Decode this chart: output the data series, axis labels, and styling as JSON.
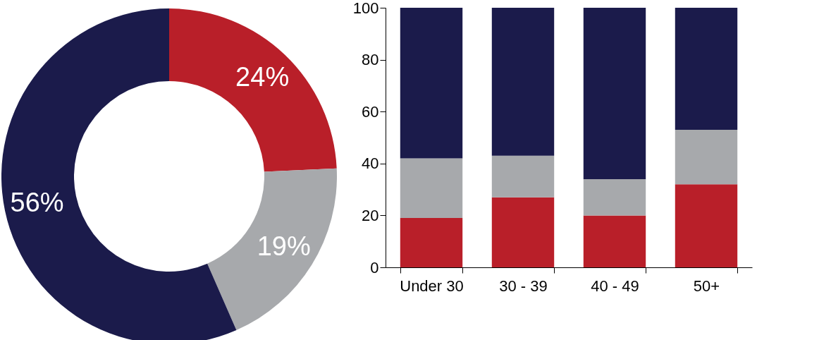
{
  "chart_data": [
    {
      "type": "donut",
      "categories": [
        null,
        null,
        null
      ],
      "values": [
        24,
        19,
        56
      ],
      "colors": [
        "#b91f29",
        "#a7a9ac",
        "#1b1b4b"
      ],
      "value_labels": [
        "24%",
        "19%",
        "56%"
      ]
    },
    {
      "type": "bar",
      "stacked": true,
      "categories": [
        "Under 30",
        "30 - 39",
        "40 - 49",
        "50+"
      ],
      "ylim": [
        0,
        100
      ],
      "yticks": [
        0,
        20,
        40,
        60,
        80,
        100
      ],
      "grid": false,
      "series": [
        {
          "color": "#b91f29",
          "values": [
            19,
            27,
            20,
            32
          ]
        },
        {
          "color": "#a7a9ac",
          "values": [
            23,
            16,
            14,
            21
          ]
        },
        {
          "color": "#1b1b4b",
          "values": [
            58,
            57,
            66,
            47
          ]
        }
      ]
    }
  ]
}
